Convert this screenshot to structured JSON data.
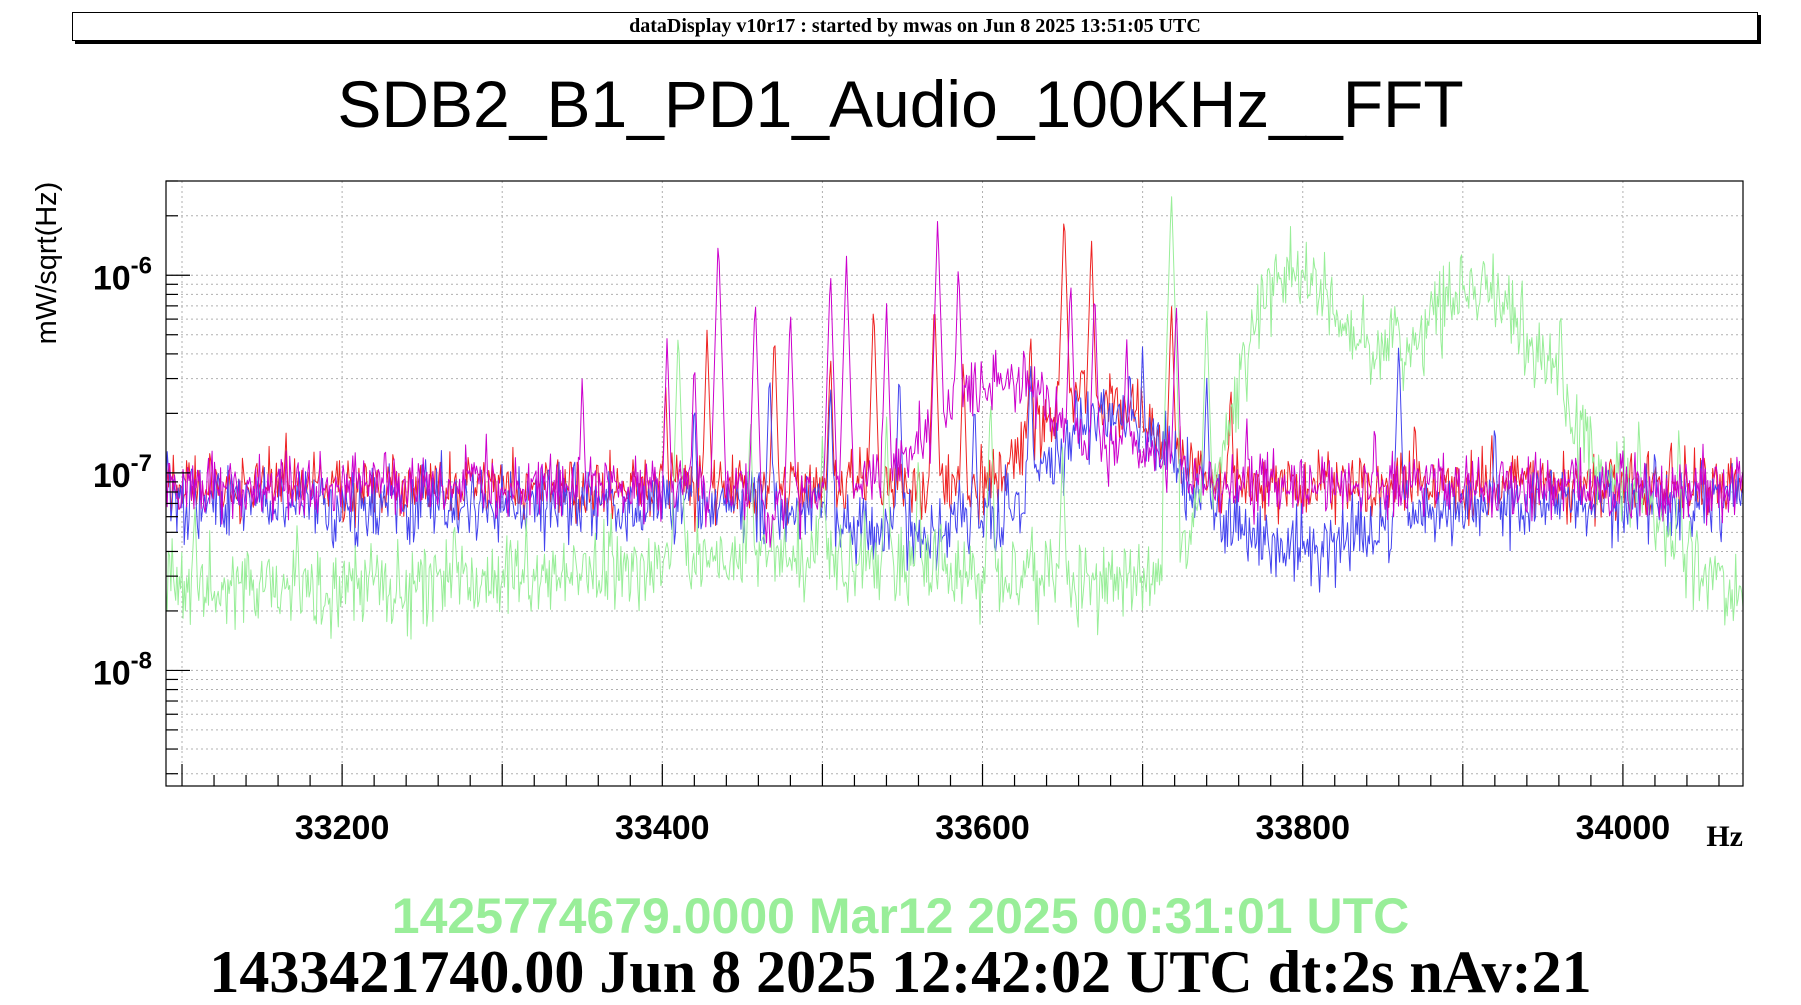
{
  "header": {
    "text": "dataDisplay v10r17 : started by mwas on Jun  8 2025 13:51:05 UTC"
  },
  "footer": {
    "reference_text": "1425774679.0000 Mar12 2025 00:31:01 UTC",
    "reference_color": "#99ee99",
    "time_text": "1433421740.00 Jun 8 2025 12:42:02 UTC dt:2s nAv:21"
  },
  "chart_data": {
    "type": "line",
    "title": "SDB2_B1_PD1_Audio_100KHz__FFT",
    "xlabel": "Hz",
    "ylabel": "mW/sqrt(Hz)",
    "xlim": [
      33090,
      34075
    ],
    "ylim": [
      2.6e-09,
      3e-06
    ],
    "ylog": true,
    "grid": true,
    "x_ticks": [
      33200,
      33400,
      33600,
      33800,
      34000
    ],
    "x_tick_labels": [
      "33200",
      "33400",
      "33600",
      "33800",
      "34000"
    ],
    "y_ticks": [
      {
        "value": 1e-06,
        "mantissa": "10",
        "exponent": "-6"
      },
      {
        "value": 1e-07,
        "mantissa": "10",
        "exponent": "-7"
      },
      {
        "value": 1e-08,
        "mantissa": "10",
        "exponent": "-8"
      }
    ],
    "series": [
      {
        "color": "#ee2222",
        "baseline": 8.5e-08,
        "noise": 0.1,
        "bumps": [
          [
            33655,
            35,
            2.6
          ],
          [
            33700,
            30,
            1.8
          ]
        ],
        "dips": [],
        "peaks": [
          [
            33165,
            1.6e-07
          ],
          [
            33232,
            1.5e-07
          ],
          [
            33402,
            3e-07
          ],
          [
            33428,
            5.5e-07
          ],
          [
            33470,
            5.5e-07
          ],
          [
            33505,
            4.2e-07
          ],
          [
            33532,
            7.5e-07
          ],
          [
            33570,
            8e-07
          ],
          [
            33588,
            4e-07
          ],
          [
            33630,
            5.5e-07
          ],
          [
            33651,
            2.2e-06
          ],
          [
            33668,
            1.6e-06
          ],
          [
            33718,
            7.5e-07
          ],
          [
            33755,
            3e-07
          ],
          [
            33870,
            2.1e-07
          ],
          [
            33918,
            1.7e-07
          ],
          [
            34005,
            1.5e-07
          ],
          [
            34030,
            1.7e-07
          ]
        ]
      },
      {
        "color": "#4444ee",
        "baseline": 7e-08,
        "noise": 0.12,
        "bumps": [
          [
            33680,
            45,
            3.0
          ]
        ],
        "dips": [
          [
            33560,
            60,
            0.7
          ],
          [
            33785,
            45,
            0.65
          ],
          [
            33830,
            40,
            0.8
          ]
        ],
        "peaks": [
          [
            33262,
            1.3e-07
          ],
          [
            33345,
            1.4e-07
          ],
          [
            33420,
            2.5e-07
          ],
          [
            33467,
            3.5e-07
          ],
          [
            33505,
            3e-07
          ],
          [
            33548,
            3.5e-07
          ],
          [
            33595,
            2.5e-07
          ],
          [
            33630,
            4e-07
          ],
          [
            33700,
            4.5e-07
          ],
          [
            33740,
            3.2e-07
          ],
          [
            33860,
            4.8e-07
          ],
          [
            33920,
            2e-07
          ],
          [
            34020,
            1.5e-07
          ]
        ]
      },
      {
        "color": "#99ee99",
        "baseline": 2.7e-08,
        "noise": 0.13,
        "bumps": [
          [
            33480,
            130,
            1.4
          ],
          [
            33785,
            40,
            11.0
          ],
          [
            33850,
            80,
            10.0
          ],
          [
            33915,
            45,
            7.0
          ],
          [
            33960,
            40,
            3.0
          ],
          [
            34010,
            30,
            2.3
          ]
        ],
        "dips": [],
        "peaks": [
          [
            33108,
            7.5e-08
          ],
          [
            33172,
            6e-08
          ],
          [
            33270,
            6.5e-08
          ],
          [
            33315,
            6e-08
          ],
          [
            33368,
            6.5e-08
          ],
          [
            33410,
            5.5e-07
          ],
          [
            33455,
            2e-07
          ],
          [
            33500,
            1.6e-07
          ],
          [
            33540,
            2e-07
          ],
          [
            33560,
            1.3e-07
          ],
          [
            33605,
            2.5e-07
          ],
          [
            33650,
            1.4e-07
          ],
          [
            33718,
            2.7e-06
          ],
          [
            33740,
            7e-07
          ],
          [
            33796,
            3e-07
          ],
          [
            33855,
            8e-07
          ],
          [
            33932,
            5e-07
          ],
          [
            33961,
            7.5e-07
          ],
          [
            34010,
            2e-07
          ],
          [
            34035,
            1.8e-07
          ]
        ]
      },
      {
        "color": "#cc00cc",
        "baseline": 8.5e-08,
        "noise": 0.1,
        "bumps": [
          [
            33610,
            55,
            3.5
          ],
          [
            33705,
            25,
            1.5
          ]
        ],
        "dips": [
          [
            33475,
            20,
            0.7
          ]
        ],
        "peaks": [
          [
            33165,
            1.3e-07
          ],
          [
            33290,
            1.6e-07
          ],
          [
            33330,
            1.4e-07
          ],
          [
            33350,
            3.2e-07
          ],
          [
            33403,
            5e-07
          ],
          [
            33420,
            4e-07
          ],
          [
            33435,
            1.6e-06
          ],
          [
            33458,
            8e-07
          ],
          [
            33480,
            7e-07
          ],
          [
            33505,
            1.1e-06
          ],
          [
            33515,
            1.3e-06
          ],
          [
            33540,
            7.5e-07
          ],
          [
            33572,
            2e-06
          ],
          [
            33585,
            1.2e-06
          ],
          [
            33626,
            5e-07
          ],
          [
            33655,
            1e-06
          ],
          [
            33670,
            9e-07
          ],
          [
            33690,
            5e-07
          ],
          [
            33721,
            7.5e-07
          ],
          [
            33765,
            2e-07
          ],
          [
            33845,
            2e-07
          ],
          [
            33880,
            1.3e-07
          ],
          [
            34000,
            1.3e-07
          ],
          [
            34050,
            1.4e-07
          ]
        ]
      }
    ]
  }
}
